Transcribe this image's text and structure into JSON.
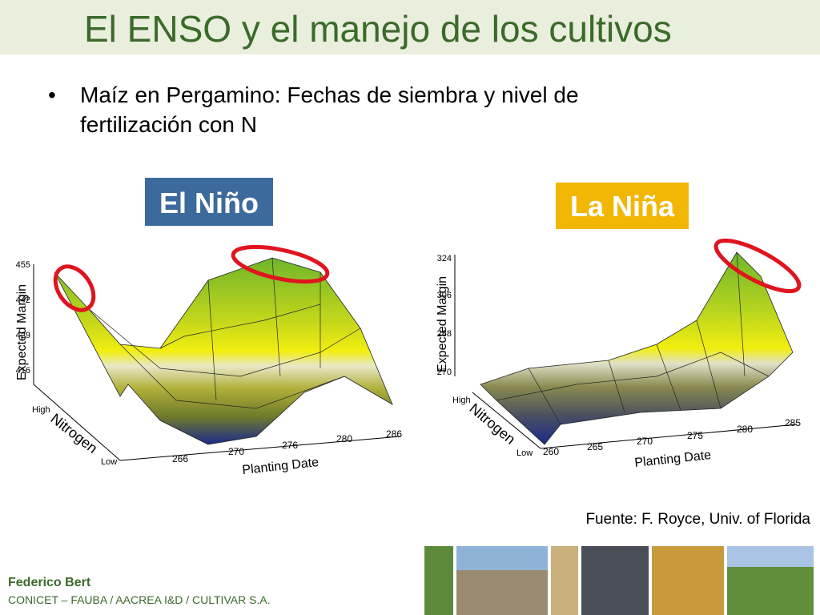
{
  "header": {
    "title": "El ENSO y el manejo de los cultivos"
  },
  "bullet": {
    "line1": "Maíz en Pergamino: Fechas de siembra y nivel de",
    "line2": "fertilización con N"
  },
  "left_plot": {
    "label": "El Niño",
    "y_axis": "Expected Margin",
    "y_ticks": [
      "455",
      "442",
      "429",
      "416"
    ],
    "depth_high": "High",
    "depth_axis": "Nitrogen",
    "depth_low": "Low",
    "x_ticks": [
      "266",
      "270",
      "276",
      "280",
      "286"
    ],
    "x_axis": "Planting Date"
  },
  "right_plot": {
    "label": "La Niña",
    "y_axis": "Expected Margin",
    "y_ticks": [
      "324",
      "306",
      "288",
      "270"
    ],
    "depth_high": "High",
    "depth_axis": "Nitrogen",
    "depth_low": "Low",
    "x_ticks": [
      "260",
      "265",
      "270",
      "275",
      "280",
      "285"
    ],
    "x_axis": "Planting Date"
  },
  "source": "Fuente: F. Royce, Univ. of Florida",
  "footer": {
    "author": "Federico Bert",
    "affiliation": "CONICET – FAUBA / AACREA I&D / CULTIVAR S.A."
  }
}
